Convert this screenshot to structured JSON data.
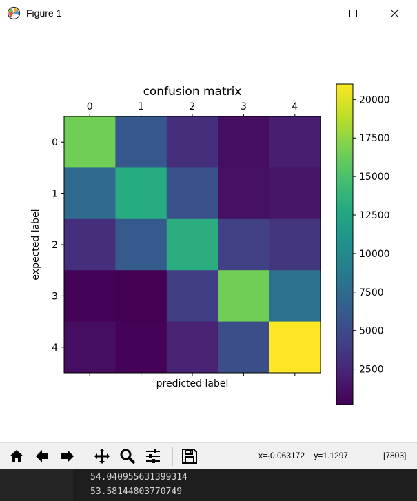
{
  "window": {
    "title": "Figure 1",
    "controls": [
      "minimize",
      "maximize",
      "close"
    ]
  },
  "chart_data": {
    "type": "heatmap",
    "title": "confusion matrix",
    "xlabel": "predicted label",
    "ylabel": "expected label",
    "x_ticks": [
      "0",
      "1",
      "2",
      "3",
      "4"
    ],
    "y_ticks": [
      "0",
      "1",
      "2",
      "3",
      "4"
    ],
    "matrix": [
      [
        16500,
        6000,
        3000,
        1000,
        2000
      ],
      [
        7500,
        13000,
        5500,
        1200,
        1500
      ],
      [
        3000,
        6200,
        13200,
        4200,
        3500
      ],
      [
        300,
        200,
        4000,
        16500,
        8000
      ],
      [
        1000,
        300,
        2200,
        5200,
        21000
      ]
    ],
    "colormap": "viridis",
    "colorbar": {
      "min": 200,
      "max": 21000,
      "ticks": [
        "2500",
        "5000",
        "7500",
        "10000",
        "12500",
        "15000",
        "17500",
        "20000"
      ]
    }
  },
  "toolbar": {
    "buttons": [
      "home-icon",
      "back-icon",
      "forward-icon",
      "pan-icon",
      "zoom-icon",
      "configure-icon",
      "save-icon"
    ],
    "coords": "x=-0.063172    y=1.1297",
    "pixel_value": "[7803]"
  },
  "console": {
    "lines": [
      "54.040955631399314",
      "53.58144803770749"
    ]
  }
}
